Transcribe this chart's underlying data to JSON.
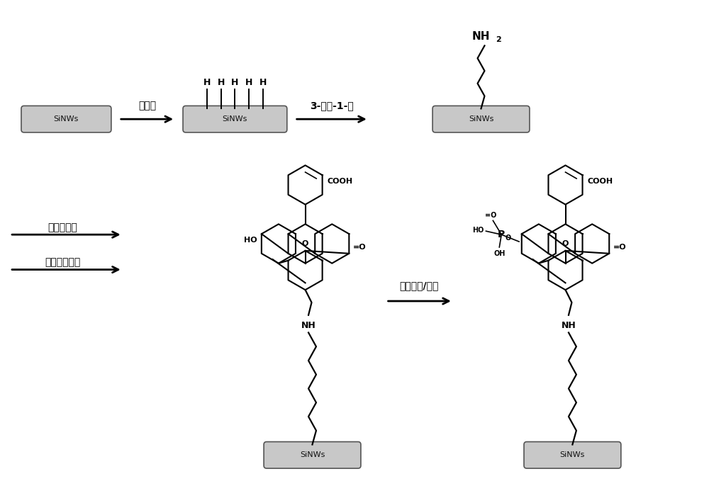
{
  "bg_color": "#ffffff",
  "sinws_fc": "#c8c8c8",
  "sinws_ec": "#555555",
  "line_color": "#000000",
  "step1_label": "氢氟酸",
  "step2_label": "3-丁烯-1-胺",
  "step3_label1": "醉基荧光素",
  "step3_label2": "醒酸噉氢化钓",
  "step4_label": "三氯氧磷/呃咗",
  "sinws_text": "SiNWs",
  "figsize": [
    10.0,
    6.86
  ],
  "dpi": 100
}
